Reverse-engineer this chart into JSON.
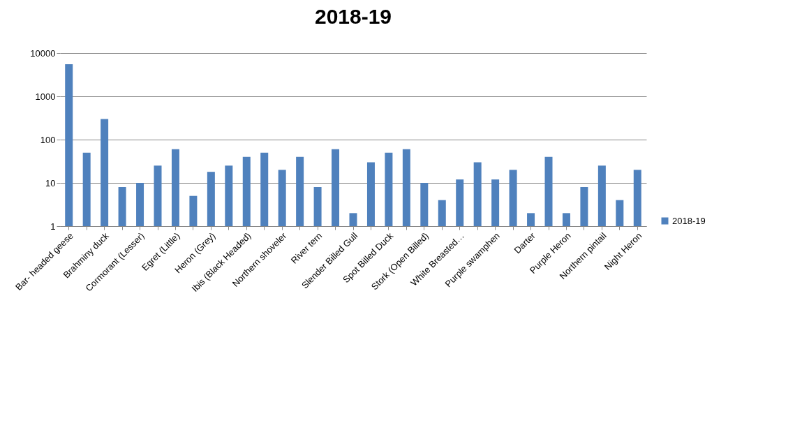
{
  "chart_data": {
    "type": "bar",
    "title": "2018-19",
    "log": true,
    "ylim": [
      1,
      10000
    ],
    "yticks": [
      1,
      10,
      100,
      1000,
      10000
    ],
    "grid": "y",
    "legend": "bottom right",
    "categories": [
      "Bar- headed geese",
      null,
      "Brahminy duck",
      null,
      "Cormorant (Lesser)",
      null,
      "Egret (Little)",
      null,
      "Heron (Grey)",
      null,
      "Ibis (Black Headed)",
      null,
      "Northern shoveler",
      null,
      "River tern",
      null,
      "Slender Billed Gull",
      null,
      "Spot Billed Duck",
      null,
      "Stork (Open Billed)",
      null,
      "White Breasted…",
      null,
      "Purple swamphen",
      null,
      "Darter",
      null,
      "Purple Heron",
      null,
      "Northern pintail",
      null,
      "Night Heron"
    ],
    "series": [
      {
        "name": "2018-19",
        "color": "#4f81bd",
        "values": [
          5500,
          50,
          300,
          8,
          10,
          25,
          60,
          5,
          18,
          25,
          40,
          50,
          20,
          40,
          8,
          60,
          2,
          30,
          50,
          60,
          10,
          4,
          12,
          30,
          12,
          20,
          2,
          40,
          2,
          8,
          25,
          4,
          20
        ]
      }
    ]
  }
}
